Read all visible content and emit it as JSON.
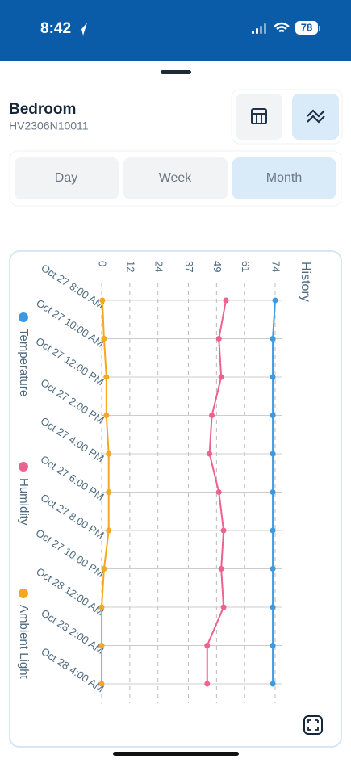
{
  "status_bar": {
    "time": "8:42",
    "battery": "78"
  },
  "header": {
    "title": "Bedroom",
    "subtitle": "HV2306N10011"
  },
  "tabs": [
    "Day",
    "Week",
    "Month"
  ],
  "chart_data": {
    "type": "line",
    "title": "History",
    "categories": [
      "Oct 27 8:00 AM",
      "Oct 27 10:00 AM",
      "Oct 27 12:00 PM",
      "Oct 27 2:00 PM",
      "Oct 27 4:00 PM",
      "Oct 27 6:00 PM",
      "Oct 27 8:00 PM",
      "Oct 27 10:00 PM",
      "Oct 28 12:00 AM",
      "Oct 28 2:00 AM",
      "Oct 28 4:00 AM"
    ],
    "series": [
      {
        "name": "Temperature",
        "color": "#3b9ae1",
        "values": [
          74,
          73,
          73,
          73,
          73,
          73,
          73,
          73,
          73,
          73,
          73
        ]
      },
      {
        "name": "Humidity",
        "color": "#f0628e",
        "values": [
          53,
          50,
          51,
          47,
          46,
          50,
          52,
          51,
          52,
          45,
          45
        ]
      },
      {
        "name": "Ambient Light",
        "color": "#f5a623",
        "values": [
          0.3,
          1,
          2,
          2,
          3,
          3,
          3,
          1,
          0,
          0,
          0
        ]
      }
    ],
    "ylim": [
      0,
      74
    ],
    "yticks": [
      0,
      12,
      24,
      37,
      49,
      61,
      74
    ],
    "grid": true
  }
}
